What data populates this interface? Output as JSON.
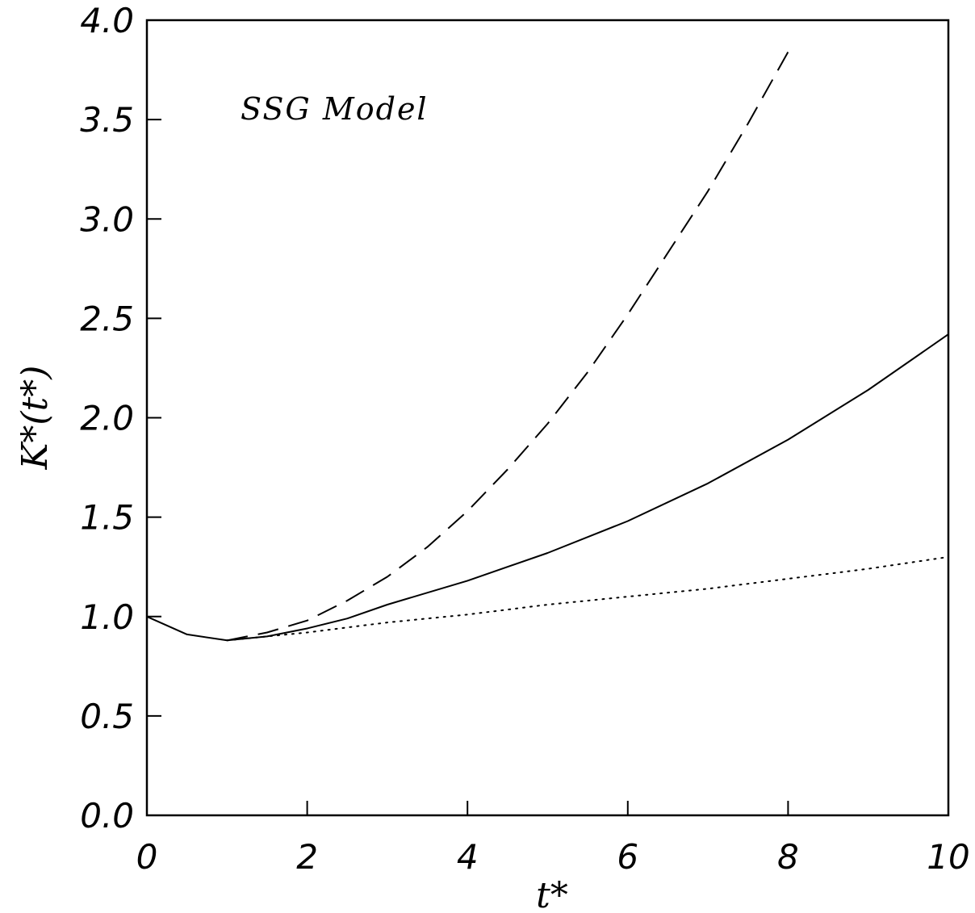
{
  "chart_data": {
    "type": "line",
    "title": "",
    "annotation": "SSG Model",
    "xlabel": "t*",
    "ylabel": "K*(t*)",
    "xlim": [
      0,
      10
    ],
    "ylim": [
      0,
      4
    ],
    "xticks": [
      "0",
      "2",
      "4",
      "6",
      "8",
      "10"
    ],
    "yticks": [
      "0.0",
      "0.5",
      "1.0",
      "1.5",
      "2.0",
      "2.5",
      "3.0",
      "3.5",
      "4.0"
    ],
    "grid": false,
    "series": [
      {
        "style": "solid",
        "x": [
          0,
          0.5,
          1.0,
          1.5,
          2.0,
          2.5,
          3.0,
          4.0,
          5.0,
          6.0,
          7.0,
          8.0,
          9.0,
          10.0
        ],
        "y": [
          1.0,
          0.91,
          0.88,
          0.9,
          0.94,
          0.99,
          1.06,
          1.18,
          1.32,
          1.48,
          1.67,
          1.89,
          2.14,
          2.42
        ]
      },
      {
        "style": "dashed",
        "x": [
          1.0,
          1.5,
          2.0,
          2.5,
          3.0,
          3.5,
          4.0,
          4.5,
          5.0,
          5.5,
          6.0,
          6.5,
          7.0,
          7.5,
          8.0
        ],
        "y": [
          0.88,
          0.92,
          0.98,
          1.08,
          1.2,
          1.35,
          1.53,
          1.74,
          1.97,
          2.23,
          2.52,
          2.83,
          3.14,
          3.48,
          3.84
        ]
      },
      {
        "style": "dotted",
        "x": [
          1.0,
          2.0,
          3.0,
          4.0,
          5.0,
          6.0,
          7.0,
          8.0,
          9.0,
          10.0
        ],
        "y": [
          0.88,
          0.92,
          0.97,
          1.01,
          1.06,
          1.1,
          1.14,
          1.19,
          1.24,
          1.3
        ]
      }
    ]
  }
}
